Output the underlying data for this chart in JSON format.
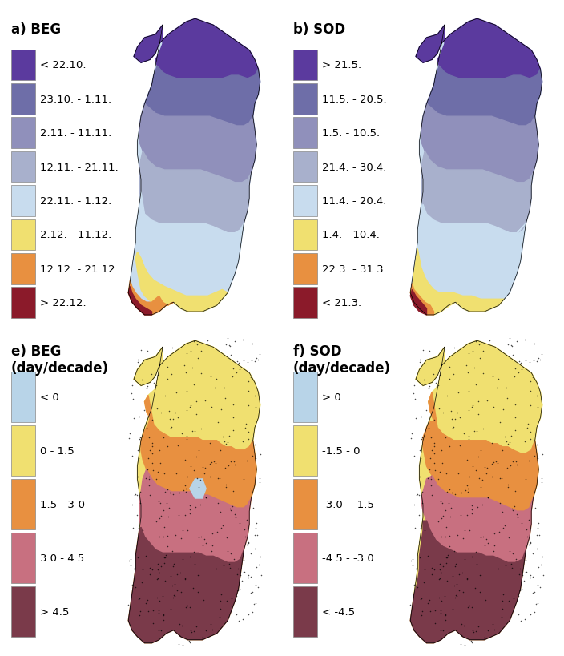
{
  "panel_a_title": "a) BEG",
  "panel_b_title": "b) SOD",
  "panel_e_title": "e) BEG\n(day/decade)",
  "panel_f_title": "f) SOD\n(day/decade)",
  "beg_legend_colors": [
    "#5b3a9e",
    "#6e6ea8",
    "#9090bb",
    "#a8b0cc",
    "#c8dcee",
    "#f0e070",
    "#e89040",
    "#8b1a2a"
  ],
  "beg_legend_labels": [
    "< 22.10.",
    "23.10. - 1.11.",
    "2.11. - 11.11.",
    "12.11. - 21.11.",
    "22.11. - 1.12.",
    "2.12. - 11.12.",
    "12.12. - 21.12.",
    "> 22.12."
  ],
  "sod_legend_colors": [
    "#5b3a9e",
    "#6e6ea8",
    "#9090bb",
    "#a8b0cc",
    "#c8dcee",
    "#f0e070",
    "#e89040",
    "#8b1a2a"
  ],
  "sod_legend_labels": [
    "> 21.5.",
    "11.5. - 20.5.",
    "1.5. - 10.5.",
    "21.4. - 30.4.",
    "11.4. - 20.4.",
    "1.4. - 10.4.",
    "22.3. - 31.3.",
    "< 21.3."
  ],
  "beg_change_colors": [
    "#b8d4e8",
    "#f0e070",
    "#e89040",
    "#c87080",
    "#7a3a4a"
  ],
  "beg_change_labels": [
    "< 0",
    "0 - 1.5",
    "1.5 - 3-0",
    "3.0 - 4.5",
    "> 4.5"
  ],
  "sod_change_colors": [
    "#b8d4e8",
    "#f0e070",
    "#e89040",
    "#c87080",
    "#7a3a4a"
  ],
  "sod_change_labels": [
    "> 0",
    "-1.5 - 0",
    "-3.0 - -1.5",
    "-4.5 - -3.0",
    "< -4.5"
  ],
  "bg_color": "#ffffff",
  "text_color": "#000000",
  "title_fontsize": 12,
  "legend_fontsize": 9.5
}
